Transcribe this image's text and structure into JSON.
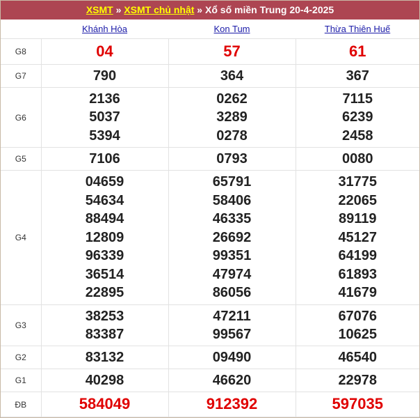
{
  "title": {
    "link1": "XSMT",
    "sep1": " » ",
    "link2": "XSMT chủ nhật",
    "sep2": " » ",
    "text": "Xổ số miền Trung 20-4-2025"
  },
  "provinces": [
    "Khánh Hòa",
    "Kon Tum",
    "Thừa Thiên Huế"
  ],
  "prizes": [
    {
      "label": "G8",
      "red": true,
      "values": [
        [
          "04"
        ],
        [
          "57"
        ],
        [
          "61"
        ]
      ]
    },
    {
      "label": "G7",
      "values": [
        [
          "790"
        ],
        [
          "364"
        ],
        [
          "367"
        ]
      ]
    },
    {
      "label": "G6",
      "values": [
        [
          "2136",
          "5037",
          "5394"
        ],
        [
          "0262",
          "3289",
          "0278"
        ],
        [
          "7115",
          "6239",
          "2458"
        ]
      ]
    },
    {
      "label": "G5",
      "values": [
        [
          "7106"
        ],
        [
          "0793"
        ],
        [
          "0080"
        ]
      ]
    },
    {
      "label": "G4",
      "values": [
        [
          "04659",
          "54634",
          "88494",
          "12809",
          "96339",
          "36514",
          "22895"
        ],
        [
          "65791",
          "58406",
          "46335",
          "26692",
          "99351",
          "47974",
          "86056"
        ],
        [
          "31775",
          "22065",
          "89119",
          "45127",
          "64199",
          "61893",
          "41679"
        ]
      ]
    },
    {
      "label": "G3",
      "values": [
        [
          "38253",
          "83387"
        ],
        [
          "47211",
          "99567"
        ],
        [
          "67076",
          "10625"
        ]
      ]
    },
    {
      "label": "G2",
      "values": [
        [
          "83132"
        ],
        [
          "09490"
        ],
        [
          "46540"
        ]
      ]
    },
    {
      "label": "G1",
      "values": [
        [
          "40298"
        ],
        [
          "46620"
        ],
        [
          "22978"
        ]
      ]
    },
    {
      "label": "ĐB",
      "red": true,
      "values": [
        [
          "584049"
        ],
        [
          "912392"
        ],
        [
          "597035"
        ]
      ]
    }
  ],
  "colors": {
    "header_bg": "#ad4552",
    "link_yellow": "#ffff00",
    "province_link": "#1a1aa8",
    "special_red": "#e00000"
  }
}
